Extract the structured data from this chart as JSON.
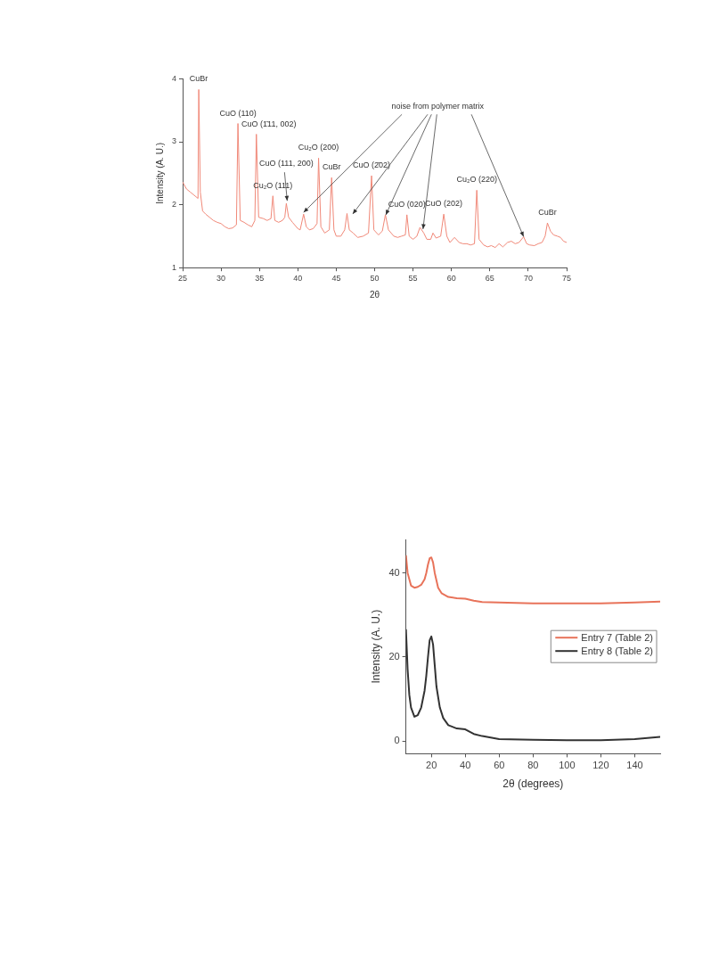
{
  "chart_data": [
    {
      "type": "line",
      "xlabel": "2θ",
      "ylabel": "Intensity (A. U.)",
      "xlim": [
        25,
        75
      ],
      "ylim": [
        1,
        4
      ],
      "xticks": [
        25,
        30,
        35,
        40,
        45,
        50,
        55,
        60,
        65,
        70,
        75
      ],
      "yticks": [
        1,
        2,
        3,
        4
      ],
      "grid": false,
      "legend": false,
      "marker": "none",
      "line_style": "solid",
      "series": [
        {
          "color": "#f08878",
          "x": [
            25,
            25.5,
            26,
            26.5,
            27.0,
            27.1,
            27.3,
            27.6,
            28,
            28.5,
            29,
            29.5,
            30,
            30.5,
            31,
            31.5,
            32,
            32.2,
            32.5,
            33,
            33.5,
            34,
            34.4,
            34.6,
            34.9,
            35.5,
            36,
            36.5,
            36.75,
            37.0,
            37.5,
            38,
            38.3,
            38.5,
            38.8,
            39.3,
            40,
            40.3,
            40.75,
            41.1,
            41.5,
            42,
            42.5,
            42.7,
            43.0,
            43.5,
            44.1,
            44.4,
            44.7,
            45,
            45.6,
            46.1,
            46.4,
            46.7,
            47.2,
            47.8,
            48.5,
            49.2,
            49.6,
            49.9,
            50.5,
            51,
            51.4,
            51.8,
            52.5,
            53,
            53.5,
            54.0,
            54.2,
            54.5,
            55,
            55.5,
            55.9,
            56.4,
            56.8,
            57.3,
            57.6,
            58,
            58.6,
            59.0,
            59.4,
            59.8,
            60.4,
            61,
            61.5,
            62,
            62.5,
            63,
            63.3,
            63.6,
            64.2,
            64.7,
            65.2,
            65.7,
            66.2,
            66.7,
            67.3,
            67.8,
            68.3,
            68.8,
            69.4,
            69.8,
            70.2,
            70.8,
            71.3,
            71.8,
            72.2,
            72.5,
            72.9,
            73.3,
            73.8,
            74.2,
            74.6,
            75
          ],
          "values": [
            2.36,
            2.25,
            2.2,
            2.15,
            2.1,
            3.83,
            2.2,
            1.9,
            1.85,
            1.8,
            1.75,
            1.72,
            1.7,
            1.65,
            1.62,
            1.63,
            1.68,
            3.29,
            1.75,
            1.72,
            1.68,
            1.65,
            1.75,
            3.12,
            1.8,
            1.78,
            1.75,
            1.78,
            2.14,
            1.75,
            1.72,
            1.75,
            1.8,
            2.02,
            1.8,
            1.72,
            1.62,
            1.6,
            1.85,
            1.65,
            1.6,
            1.62,
            1.7,
            2.74,
            1.65,
            1.55,
            1.6,
            2.43,
            1.6,
            1.5,
            1.5,
            1.6,
            1.86,
            1.6,
            1.55,
            1.48,
            1.5,
            1.55,
            2.46,
            1.6,
            1.52,
            1.58,
            1.84,
            1.6,
            1.5,
            1.48,
            1.5,
            1.52,
            1.84,
            1.5,
            1.45,
            1.5,
            1.64,
            1.55,
            1.45,
            1.45,
            1.55,
            1.47,
            1.5,
            1.85,
            1.5,
            1.4,
            1.48,
            1.4,
            1.38,
            1.38,
            1.36,
            1.38,
            2.23,
            1.45,
            1.36,
            1.33,
            1.35,
            1.32,
            1.38,
            1.33,
            1.4,
            1.42,
            1.38,
            1.4,
            1.49,
            1.38,
            1.36,
            1.35,
            1.38,
            1.4,
            1.5,
            1.71,
            1.58,
            1.52,
            1.5,
            1.48,
            1.42,
            1.4
          ]
        }
      ],
      "annotations": [
        {
          "text": "CuBr",
          "x": 27.1,
          "y": 3.83
        },
        {
          "text": "CuO (110)",
          "x": 32.2,
          "y": 3.29
        },
        {
          "text": "CuO (1̄11, 002)",
          "x": 34.6,
          "y": 3.12
        },
        {
          "text": "Cu₂O (111)",
          "x": 36.75,
          "y": 2.14
        },
        {
          "text": "CuO (111, 200)",
          "x": 38.5,
          "y": 2.02
        },
        {
          "text": "Cu₂O (200)",
          "x": 42.7,
          "y": 2.74
        },
        {
          "text": "CuBr",
          "x": 44.4,
          "y": 2.43
        },
        {
          "text": "CuO (2̄02)",
          "x": 49.6,
          "y": 2.46
        },
        {
          "text": "CuO (020)",
          "x": 54.2,
          "y": 1.84
        },
        {
          "text": "CuO (202)",
          "x": 59.0,
          "y": 1.85
        },
        {
          "text": "Cu₂O (220)",
          "x": 63.3,
          "y": 2.23
        },
        {
          "text": "CuBr",
          "x": 72.5,
          "y": 1.71
        },
        {
          "text": "noise from polymer matrix",
          "x": 40.75,
          "y": 1.85
        }
      ]
    },
    {
      "type": "line",
      "xlabel": "2θ (degrees)",
      "ylabel": "Intensity (A. U.)",
      "xlim": [
        5,
        155
      ],
      "ylim": [
        -3,
        48
      ],
      "xticks": [
        20,
        40,
        60,
        80,
        100,
        120,
        140
      ],
      "yticks": [
        0,
        20,
        40
      ],
      "grid": false,
      "legend": "right",
      "marker": "none",
      "line_style": "solid",
      "series": [
        {
          "name": "Entry 7 (Table 2)",
          "color": "#e8735a",
          "x": [
            5,
            6,
            8,
            10,
            12,
            14,
            16,
            17,
            18,
            19,
            20,
            21,
            22,
            24,
            26,
            30,
            35,
            40,
            45,
            50,
            60,
            80,
            100,
            120,
            140,
            155
          ],
          "values": [
            44.2,
            40,
            37,
            36.5,
            36.7,
            37.2,
            38.5,
            40,
            42,
            43.5,
            43.7,
            42.5,
            40,
            36.5,
            35.2,
            34.3,
            34,
            33.9,
            33.4,
            33.1,
            33,
            32.8,
            32.8,
            32.8,
            33,
            33.2
          ]
        },
        {
          "name": "Entry 8 (Table 2)",
          "color": "#333333",
          "x": [
            5,
            6,
            7,
            8,
            10,
            12,
            14,
            16,
            17,
            18,
            19,
            20,
            21,
            22,
            23,
            25,
            27,
            30,
            35,
            40,
            45,
            50,
            60,
            80,
            100,
            120,
            140,
            155
          ],
          "values": [
            26.6,
            17,
            11,
            8,
            5.8,
            6.2,
            8,
            12,
            15.5,
            20,
            24,
            24.9,
            23,
            18,
            13,
            8,
            5.5,
            3.8,
            3,
            2.8,
            1.7,
            1.2,
            0.5,
            0.3,
            0.2,
            0.2,
            0.5,
            1.0
          ]
        }
      ]
    }
  ]
}
